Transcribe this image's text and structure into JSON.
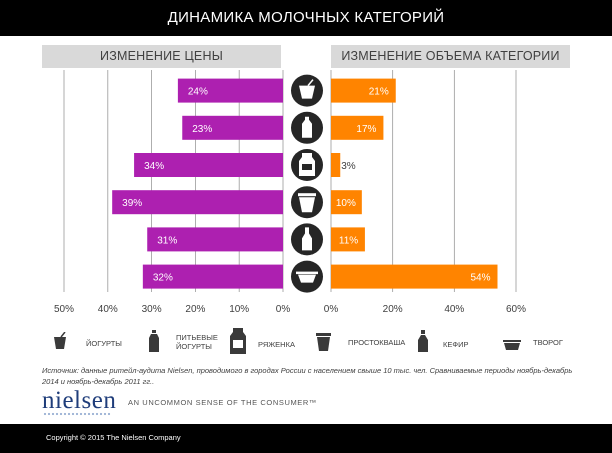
{
  "header": {
    "title": "ДИНАМИКА МОЛОЧНЫХ КАТЕГОРИЙ"
  },
  "sections": {
    "price_label": "ИЗМЕНЕНИЕ ЦЕНЫ",
    "volume_label": "ИЗМЕНЕНИЕ ОБЪЕМА КАТЕГОРИИ"
  },
  "colors": {
    "price_bar": "#ad20b0",
    "volume_bar": "#ff8400",
    "icon_circle": "#262626",
    "grid": "#999999"
  },
  "chart_data": [
    {
      "type": "bar",
      "orientation": "horizontal",
      "title": "ИЗМЕНЕНИЕ ЦЕНЫ",
      "categories": [
        "ЙОГУРТЫ",
        "ПИТЬЕВЫЕ ЙОГУРТЫ",
        "РЯЖЕНКА",
        "ПРОСТОКВАША",
        "КЕФИР",
        "ТВОРОГ"
      ],
      "values": [
        24,
        23,
        34,
        39,
        31,
        32
      ],
      "value_labels": [
        "24%",
        "23%",
        "34%",
        "39%",
        "31%",
        "32%"
      ],
      "xlim": [
        50,
        0
      ],
      "ticks": [
        "50%",
        "40%",
        "30%",
        "20%",
        "10%",
        "0%"
      ],
      "tick_values": [
        50,
        40,
        30,
        20,
        10,
        0
      ],
      "direction": "right-to-left",
      "grid": true
    },
    {
      "type": "bar",
      "orientation": "horizontal",
      "title": "ИЗМЕНЕНИЕ ОБЪЕМА КАТЕГОРИИ",
      "categories": [
        "ЙОГУРТЫ",
        "ПИТЬЕВЫЕ ЙОГУРТЫ",
        "РЯЖЕНКА",
        "ПРОСТОКВАША",
        "КЕФИР",
        "ТВОРОГ"
      ],
      "values": [
        21,
        17,
        3,
        10,
        11,
        54
      ],
      "value_labels": [
        "21%",
        "17%",
        "3%",
        "10%",
        "11%",
        "54%"
      ],
      "xlim": [
        0,
        60
      ],
      "ticks": [
        "0%",
        "20%",
        "40%",
        "60%"
      ],
      "tick_values": [
        0,
        20,
        40,
        60
      ],
      "direction": "left-to-right",
      "grid": true
    }
  ],
  "legend": [
    {
      "label": "ЙОГУРТЫ",
      "icon": "yogurt-cup-icon"
    },
    {
      "label": "ПИТЬЕВЫЕ ЙОГУРТЫ",
      "icon": "drinking-yogurt-bottle-icon"
    },
    {
      "label": "РЯЖЕНКА",
      "icon": "ryazhenka-carton-icon"
    },
    {
      "label": "ПРОСТОКВАША",
      "icon": "prostokvasha-cup-icon"
    },
    {
      "label": "КЕФИР",
      "icon": "kefir-bottle-icon"
    },
    {
      "label": "ТВОРОГ",
      "icon": "tvorog-tub-icon"
    }
  ],
  "source": "Источник: данные ритейл-аудита Nielsen, проводимого в городах России с населением свыше 10 тыс. чел.  Сравниваемые периоды ноябрь-декабрь 2014  и ноябрь-декабрь 2011 гг..",
  "brand": {
    "logo": "nielsen",
    "tagline": "AN UNCOMMON SENSE OF THE CONSUMER™"
  },
  "footer": {
    "copyright": "Copyright  ©  2015 The Nielsen Company"
  }
}
